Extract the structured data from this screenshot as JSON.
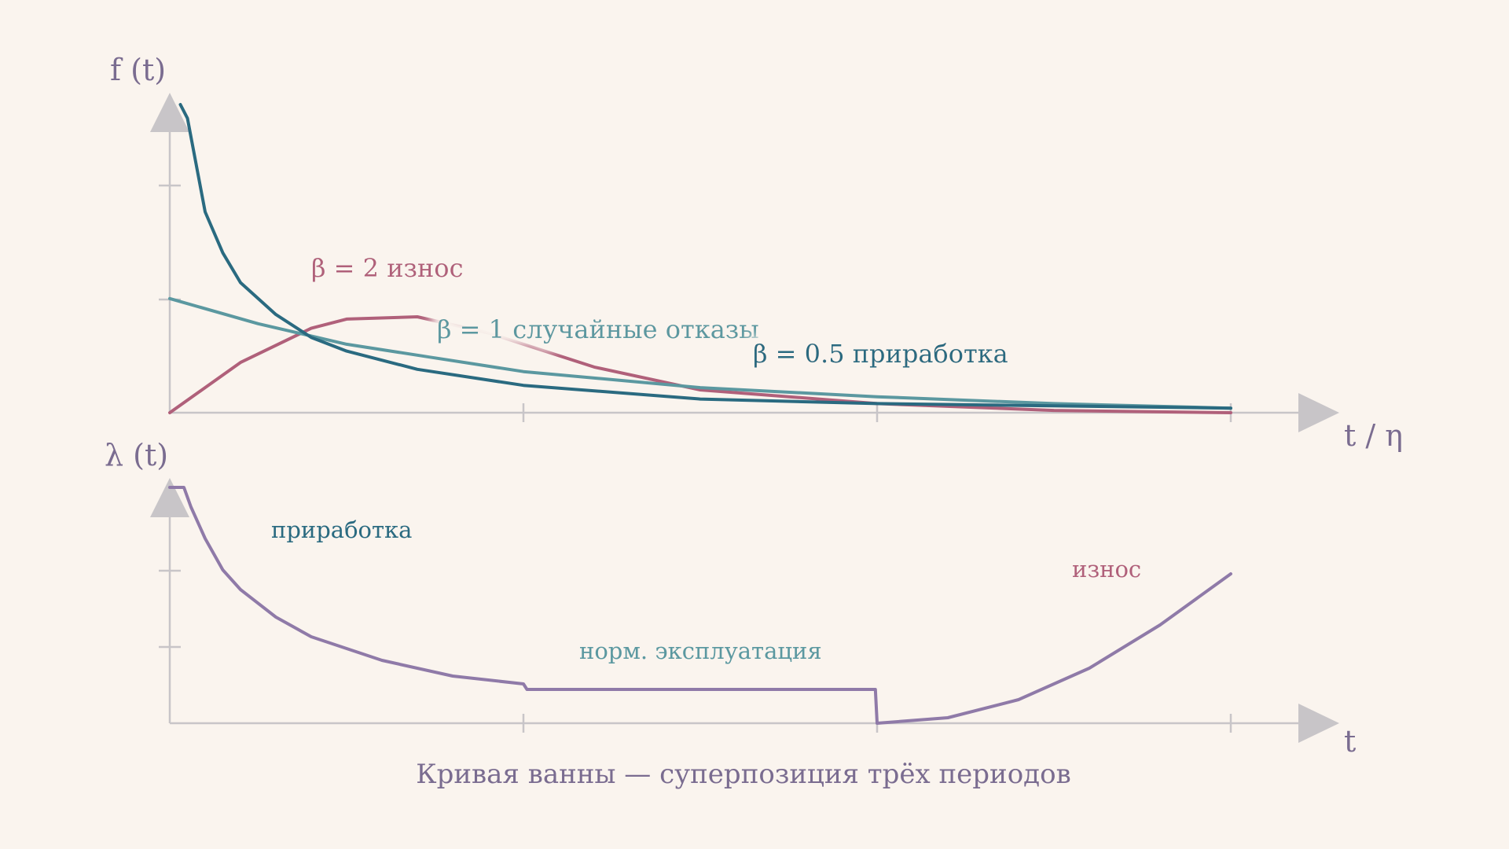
{
  "colors": {
    "background": "#faf4ee",
    "axis": "#c8c5c8",
    "beta_05": "#2a6a80",
    "beta_1": "#5b98a0",
    "beta_2": "#b0607a",
    "hazard": "#8f7aa8",
    "axis_label": "#7a6c90"
  },
  "top_chart": {
    "ylabel": "f (t)",
    "xlabel": "t / η",
    "labels": {
      "beta_2": "β = 2  износ",
      "beta_1": "β = 1  случайные отказы",
      "beta_05": "β = 0.5  приработка"
    }
  },
  "bottom_chart": {
    "ylabel": "λ (t)",
    "xlabel": "t",
    "labels": {
      "burn_in": "приработка",
      "normal": "норм. эксплуатация",
      "wearout": "износ"
    }
  },
  "caption": "Кривая ванны — суперпозиция трёх периодов",
  "chart_data": [
    {
      "type": "line",
      "title": "",
      "xlabel": "t / η",
      "ylabel": "f (t)",
      "xlim": [
        0,
        3
      ],
      "ylim": [
        0,
        1.35
      ],
      "grid": false,
      "series": [
        {
          "name": "β = 0.5  приработка",
          "x": [
            0.03,
            0.05,
            0.1,
            0.15,
            0.2,
            0.3,
            0.4,
            0.5,
            0.7,
            1.0,
            1.5,
            2.0,
            2.5,
            3.0
          ],
          "y": [
            1.35,
            1.29,
            0.88,
            0.7,
            0.57,
            0.43,
            0.33,
            0.27,
            0.19,
            0.12,
            0.06,
            0.04,
            0.03,
            0.02
          ]
        },
        {
          "name": "β = 1  случайные отказы",
          "x": [
            0.0,
            0.25,
            0.5,
            0.75,
            1.0,
            1.5,
            2.0,
            2.5,
            3.0
          ],
          "y": [
            0.5,
            0.39,
            0.3,
            0.24,
            0.18,
            0.11,
            0.07,
            0.04,
            0.02
          ]
        },
        {
          "name": "β = 2  износ",
          "x": [
            0.0,
            0.2,
            0.4,
            0.5,
            0.7,
            0.9,
            1.2,
            1.5,
            2.0,
            2.5,
            3.0
          ],
          "y": [
            0.0,
            0.22,
            0.37,
            0.41,
            0.42,
            0.35,
            0.2,
            0.1,
            0.04,
            0.01,
            0.0
          ]
        }
      ]
    },
    {
      "type": "line",
      "title": "",
      "xlabel": "t",
      "ylabel": "λ (t)",
      "xlim": [
        0,
        3
      ],
      "ylim": [
        0,
        3
      ],
      "grid": false,
      "series": [
        {
          "name": "",
          "x": [
            0.0,
            0.04,
            0.06,
            0.1,
            0.15,
            0.2,
            0.3,
            0.4,
            0.6,
            0.8,
            1.0,
            1.01,
            1.5,
            1.995,
            2.0,
            2.2,
            2.4,
            2.6,
            2.8,
            3.0
          ],
          "y": [
            3.0,
            3.0,
            2.75,
            2.35,
            1.95,
            1.7,
            1.35,
            1.1,
            0.8,
            0.6,
            0.5,
            0.43,
            0.43,
            0.43,
            0.0,
            0.07,
            0.3,
            0.7,
            1.25,
            1.9
          ]
        }
      ]
    }
  ]
}
